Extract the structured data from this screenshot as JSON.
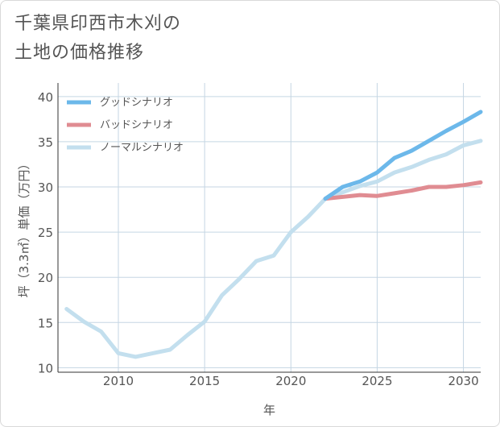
{
  "title": {
    "line1": "千葉県印西市木刈の",
    "line2": "土地の価格推移"
  },
  "chart_data": {
    "type": "line",
    "xlabel": "年",
    "ylabel": "坪（3.3㎡）単価（万円）",
    "xlim": [
      2006.5,
      2031
    ],
    "ylim": [
      9.5,
      41.5
    ],
    "xticks": [
      2010,
      2015,
      2020,
      2025,
      2030
    ],
    "yticks": [
      10,
      15,
      20,
      25,
      30,
      35,
      40
    ],
    "grid": true,
    "legend_position": "top-left",
    "series": [
      {
        "name": "グッドシナリオ",
        "color": "#6cb8ea",
        "x": [
          2022,
          2023,
          2024,
          2025,
          2026,
          2027,
          2028,
          2029,
          2030,
          2031
        ],
        "y": [
          28.7,
          30.0,
          30.6,
          31.6,
          33.2,
          34.0,
          35.1,
          36.2,
          37.2,
          38.3
        ]
      },
      {
        "name": "バッドシナリオ",
        "color": "#e08c92",
        "x": [
          2022,
          2023,
          2024,
          2025,
          2026,
          2027,
          2028,
          2029,
          2030,
          2031
        ],
        "y": [
          28.7,
          28.9,
          29.1,
          29.0,
          29.3,
          29.6,
          30.0,
          30.0,
          30.2,
          30.5
        ]
      },
      {
        "name": "ノーマルシナリオ",
        "color": "#c3dfee",
        "x": [
          2007,
          2008,
          2009,
          2010,
          2011,
          2012,
          2013,
          2014,
          2015,
          2016,
          2017,
          2018,
          2019,
          2020,
          2021,
          2022,
          2023,
          2024,
          2025,
          2026,
          2027,
          2028,
          2029,
          2030,
          2031
        ],
        "y": [
          16.5,
          15.1,
          14.0,
          11.6,
          11.2,
          11.6,
          12.0,
          13.6,
          15.1,
          18.0,
          19.8,
          21.8,
          22.4,
          25.0,
          26.7,
          28.7,
          29.4,
          30.1,
          30.6,
          31.6,
          32.2,
          33.0,
          33.6,
          34.6,
          35.1
        ]
      }
    ]
  }
}
